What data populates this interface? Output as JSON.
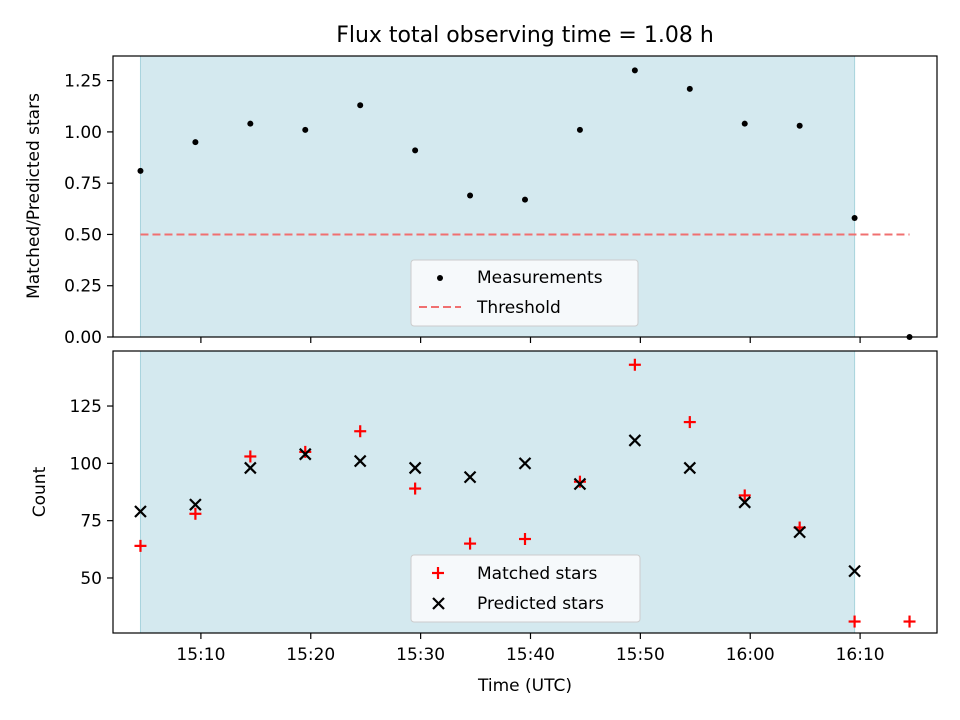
{
  "chart_data": [
    {
      "type": "scatter",
      "title": "Flux total observing time = 1.08 h",
      "ylabel": "Matched/Predicted stars",
      "xlabel": "",
      "ylim": [
        0,
        1.37
      ],
      "yticks": [
        "0.00",
        "0.25",
        "0.50",
        "0.75",
        "1.00",
        "1.25"
      ],
      "ytick_values": [
        0,
        0.25,
        0.5,
        0.75,
        1.0,
        1.25
      ],
      "shaded_interval": [
        "15:04:30",
        "16:09:30"
      ],
      "series": [
        {
          "name": "Measurements",
          "color": "#000000",
          "marker": "dot",
          "x": [
            "15:04:30",
            "15:09:30",
            "15:14:30",
            "15:19:30",
            "15:24:30",
            "15:29:30",
            "15:34:30",
            "15:39:30",
            "15:44:30",
            "15:49:30",
            "15:54:30",
            "15:59:30",
            "16:04:30",
            "16:09:30",
            "16:14:30"
          ],
          "values": [
            0.81,
            0.95,
            1.04,
            1.01,
            1.13,
            0.91,
            0.69,
            0.67,
            1.01,
            1.3,
            1.21,
            1.04,
            1.03,
            0.58,
            0.0
          ]
        },
        {
          "name": "Threshold",
          "color": "#f07070",
          "marker": "dashed-line",
          "x": [
            "15:04:30",
            "16:14:30"
          ],
          "values": [
            0.5,
            0.5
          ]
        }
      ],
      "legend": {
        "placement": "lower-center",
        "labels": [
          "Measurements",
          "Threshold"
        ]
      }
    },
    {
      "type": "scatter",
      "title": "",
      "ylabel": "Count",
      "xlabel": "Time (UTC)",
      "ylim": [
        26,
        149
      ],
      "yticks": [
        "50",
        "75",
        "100",
        "125"
      ],
      "ytick_values": [
        50,
        75,
        100,
        125
      ],
      "xlim": [
        "15:02:00",
        "16:17:00"
      ],
      "xticks": [
        "15:10",
        "15:20",
        "15:30",
        "15:40",
        "15:50",
        "16:00",
        "16:10"
      ],
      "xtick_values": [
        "15:10:00",
        "15:20:00",
        "15:30:00",
        "15:40:00",
        "15:50:00",
        "16:00:00",
        "16:10:00"
      ],
      "shaded_interval": [
        "15:04:30",
        "16:09:30"
      ],
      "series": [
        {
          "name": "Matched stars",
          "color": "#ff0000",
          "marker": "plus",
          "x": [
            "15:04:30",
            "15:09:30",
            "15:14:30",
            "15:19:30",
            "15:24:30",
            "15:29:30",
            "15:34:30",
            "15:39:30",
            "15:44:30",
            "15:49:30",
            "15:54:30",
            "15:59:30",
            "16:04:30",
            "16:09:30",
            "16:14:30"
          ],
          "values": [
            64,
            78,
            103,
            105,
            114,
            89,
            65,
            67,
            92,
            143,
            118,
            86,
            72,
            31,
            31
          ]
        },
        {
          "name": "Predicted stars",
          "color": "#000000",
          "marker": "x",
          "x": [
            "15:04:30",
            "15:09:30",
            "15:14:30",
            "15:19:30",
            "15:24:30",
            "15:29:30",
            "15:34:30",
            "15:39:30",
            "15:44:30",
            "15:49:30",
            "15:54:30",
            "15:59:30",
            "16:04:30",
            "16:09:30"
          ],
          "values": [
            79,
            82,
            98,
            104,
            101,
            98,
            94,
            100,
            91,
            110,
            98,
            83,
            70,
            53
          ]
        }
      ],
      "legend": {
        "placement": "lower-center",
        "labels": [
          "Matched stars",
          "Predicted stars"
        ]
      }
    }
  ],
  "colors": {
    "shade": "#d4e9ef",
    "shade_edge": "#a8d4dd",
    "threshold": "#f07070",
    "matched": "#ff0000",
    "predicted": "#000000"
  }
}
